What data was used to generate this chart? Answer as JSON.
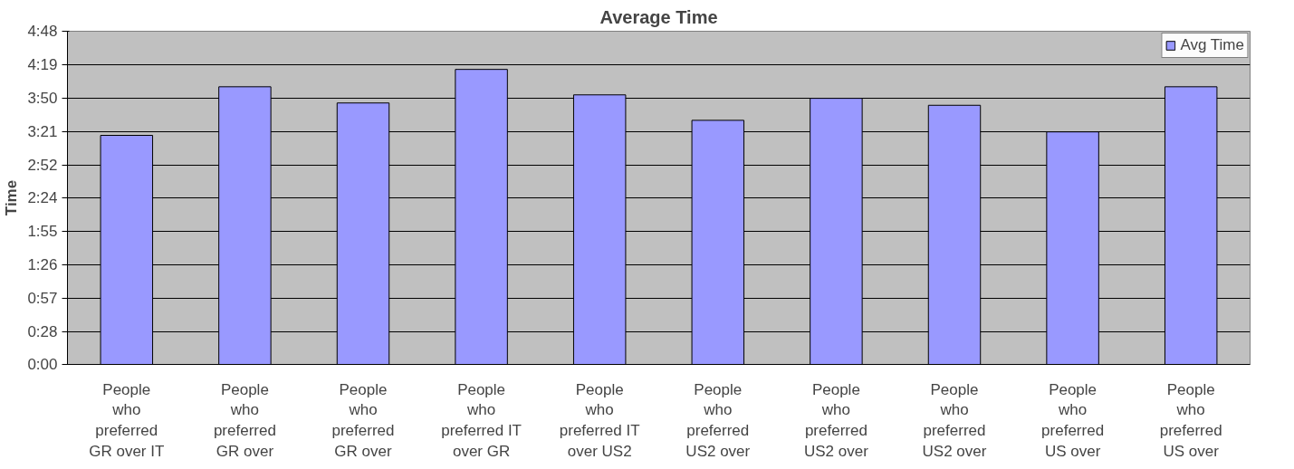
{
  "chart_data": {
    "type": "bar",
    "title": "Average Time",
    "ylabel": "Time",
    "categories": [
      "People\nwho\npreferred\nGR over IT",
      "People\nwho\npreferred\nGR over",
      "People\nwho\npreferred\nGR over",
      "People\nwho\npreferred IT\nover GR",
      "People\nwho\npreferred IT\nover US2",
      "People\nwho\npreferred\nUS2 over",
      "People\nwho\npreferred\nUS2 over",
      "People\nwho\npreferred\nUS2 over",
      "People\nwho\npreferred\nUS over",
      "People\nwho\npreferred\nUS over"
    ],
    "series": [
      {
        "name": "Avg Time",
        "color": "#9999ff",
        "values": [
          198,
          240,
          226,
          255,
          233,
          211,
          230,
          224,
          201,
          240
        ]
      }
    ],
    "ylim": [
      0,
      288
    ],
    "yticks": [
      {
        "value": 0,
        "label": "0:00"
      },
      {
        "value": 28,
        "label": "0:28"
      },
      {
        "value": 57,
        "label": "0:57"
      },
      {
        "value": 86,
        "label": "1:26"
      },
      {
        "value": 115,
        "label": "1:55"
      },
      {
        "value": 144,
        "label": "2:24"
      },
      {
        "value": 172,
        "label": "2:52"
      },
      {
        "value": 201,
        "label": "3:21"
      },
      {
        "value": 230,
        "label": "3:50"
      },
      {
        "value": 259,
        "label": "4:19"
      },
      {
        "value": 288,
        "label": "4:48"
      }
    ],
    "grid": "y",
    "legend": "top right"
  }
}
